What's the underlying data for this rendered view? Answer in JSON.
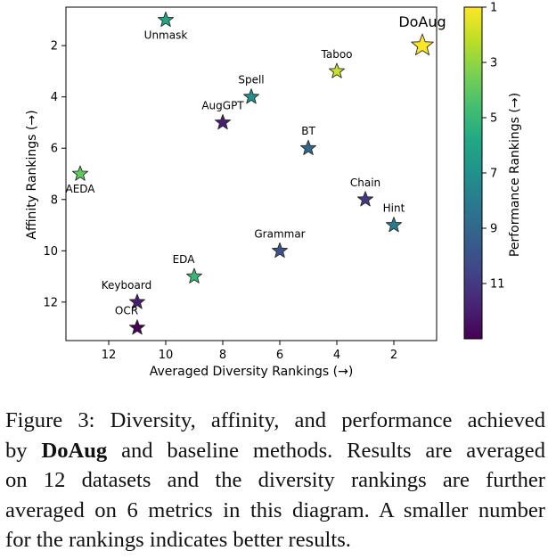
{
  "chart_data": {
    "type": "scatter",
    "xlabel": "Averaged Diversity Rankings (→)",
    "ylabel": "Affinity Rankings (→)",
    "colorbar_label": "Performance Rankings (→)",
    "x_ticks": [
      12,
      10,
      8,
      6,
      4,
      2
    ],
    "y_ticks": [
      2,
      4,
      6,
      8,
      10,
      12
    ],
    "colorbar_ticks": [
      1,
      3,
      5,
      7,
      9,
      11
    ],
    "xlim": [
      13.5,
      0.5
    ],
    "ylim": [
      0.5,
      13.5
    ],
    "clim": [
      1,
      13
    ],
    "points": [
      {
        "label": "Unmask",
        "x": 10,
        "y": 1,
        "perf": 6,
        "label_pos": "below"
      },
      {
        "label": "DoAug",
        "x": 1,
        "y": 2,
        "perf": 1,
        "label_pos": "above",
        "highlight": true
      },
      {
        "label": "Taboo",
        "x": 4,
        "y": 3,
        "perf": 2,
        "label_pos": "above"
      },
      {
        "label": "Spell",
        "x": 7,
        "y": 4,
        "perf": 7,
        "label_pos": "above"
      },
      {
        "label": "AugGPT",
        "x": 8,
        "y": 5,
        "perf": 12,
        "label_pos": "above"
      },
      {
        "label": "BT",
        "x": 5,
        "y": 6,
        "perf": 9,
        "label_pos": "above"
      },
      {
        "label": "AEDA",
        "x": 13,
        "y": 7,
        "perf": 4,
        "label_pos": "below"
      },
      {
        "label": "Chain",
        "x": 3,
        "y": 8,
        "perf": 11,
        "label_pos": "above"
      },
      {
        "label": "Hint",
        "x": 2,
        "y": 9,
        "perf": 8,
        "label_pos": "above"
      },
      {
        "label": "Grammar",
        "x": 6,
        "y": 10,
        "perf": 10,
        "label_pos": "above"
      },
      {
        "label": "EDA",
        "x": 9,
        "y": 11,
        "perf": 5,
        "label_pos": "above-left"
      },
      {
        "label": "Keyboard",
        "x": 11,
        "y": 12,
        "perf": 12,
        "label_pos": "above-left"
      },
      {
        "label": "OCR",
        "x": 11,
        "y": 13,
        "perf": 13,
        "label_pos": "above-left"
      }
    ]
  },
  "caption": {
    "lines": [
      {
        "text": "Figure 3: Diversity, affinity, and performance achieved"
      },
      {
        "prefix": "by ",
        "bold": "DoAug",
        "text": " and baseline methods. Results are averaged"
      },
      {
        "text": "on 12 datasets and the diversity rankings are further"
      },
      {
        "text": "averaged on 6 metrics in this diagram. A smaller number"
      },
      {
        "text": "for the rankings indicates better results."
      }
    ]
  }
}
